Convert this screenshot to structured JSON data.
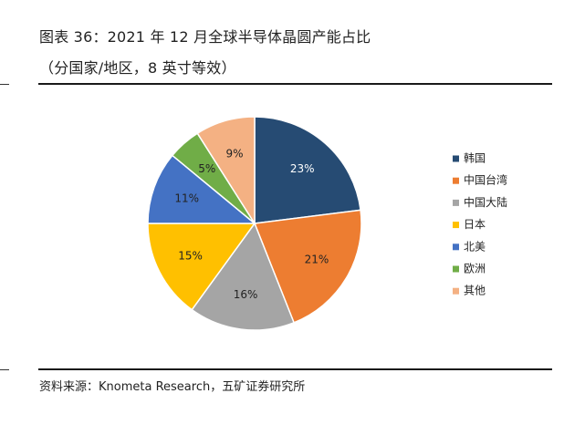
{
  "title": {
    "line1": "图表 36：2021 年 12 月全球半导体晶圆产能占比",
    "line2": "（分国家/地区，8 英寸等效）"
  },
  "source": "资料来源：Knometa Research，五矿证券研究所",
  "chart_data": {
    "type": "pie",
    "title": "2021 年 12 月全球半导体晶圆产能占比",
    "subtitle": "（分国家/地区，8 英寸等效）",
    "unit": "%",
    "legend_position": "right",
    "start_angle_deg": 0,
    "direction": "clockwise",
    "slices": [
      {
        "label": "韩国",
        "value": 23,
        "display": "23%",
        "color": "#264b73",
        "label_color": "#ffffff"
      },
      {
        "label": "中国台湾",
        "value": 21,
        "display": "21%",
        "color": "#ed7d31",
        "label_color": "#222222"
      },
      {
        "label": "中国大陆",
        "value": 16,
        "display": "16%",
        "color": "#a5a5a5",
        "label_color": "#222222"
      },
      {
        "label": "日本",
        "value": 15,
        "display": "15%",
        "color": "#ffc000",
        "label_color": "#222222"
      },
      {
        "label": "北美",
        "value": 11,
        "display": "11%",
        "color": "#4472c4",
        "label_color": "#222222"
      },
      {
        "label": "欧洲",
        "value": 5,
        "display": "5%",
        "color": "#70ad47",
        "label_color": "#222222"
      },
      {
        "label": "其他",
        "value": 9,
        "display": "9%",
        "color": "#f4b183",
        "label_color": "#222222"
      }
    ]
  }
}
